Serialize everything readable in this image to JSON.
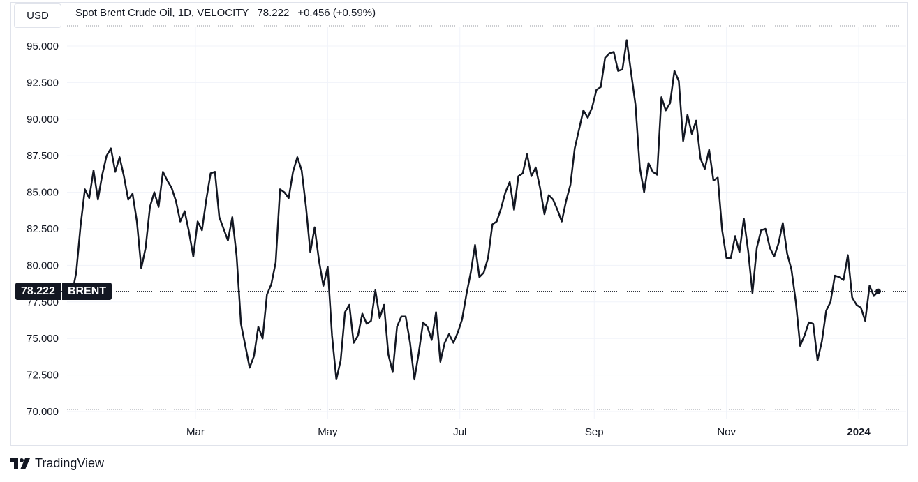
{
  "currency": "USD",
  "legend": {
    "name": "Spot Brent Crude Oil, 1D, VELOCITY",
    "last": "78.222",
    "change": "+0.456 (+0.59%)"
  },
  "price_label": {
    "price": "78.222",
    "symbol": "BRENT"
  },
  "brand": {
    "name": "TradingView",
    "icon": "tradingview-logo-icon"
  },
  "colors": {
    "line": "#131722",
    "grid": "#f0f3fa",
    "text": "#131722"
  },
  "chart_data": {
    "type": "line",
    "title": "Spot Brent Crude Oil, 1D, VELOCITY",
    "y_ticks": [
      "95.000",
      "92.500",
      "90.000",
      "87.500",
      "85.000",
      "82.500",
      "80.000",
      "77.500",
      "75.000",
      "72.500",
      "70.000"
    ],
    "ylim": [
      70,
      96.2
    ],
    "x_ticks": [
      "Mar",
      "May",
      "Jul",
      "Sep",
      "Nov",
      "2024"
    ],
    "x_tick_dates": [
      "2023-03-01",
      "2023-05-01",
      "2023-07-01",
      "2023-09-01",
      "2023-11-01",
      "2024-01-01"
    ],
    "xlim": [
      "2023-01-01",
      "2024-01-12"
    ],
    "grid": true,
    "last_value": 78.222,
    "series": [
      {
        "dates": [
          "2023-01-03",
          "2023-01-05",
          "2023-01-07",
          "2023-01-09",
          "2023-01-11",
          "2023-01-13",
          "2023-01-15",
          "2023-01-17",
          "2023-01-19",
          "2023-01-21",
          "2023-01-23",
          "2023-01-25",
          "2023-01-27",
          "2023-01-29",
          "2023-01-31",
          "2023-02-02",
          "2023-02-04",
          "2023-02-06",
          "2023-02-08",
          "2023-02-10",
          "2023-02-12",
          "2023-02-14",
          "2023-02-16",
          "2023-02-18",
          "2023-02-20",
          "2023-02-22",
          "2023-02-24",
          "2023-02-26",
          "2023-02-28",
          "2023-03-02",
          "2023-03-04",
          "2023-03-06",
          "2023-03-08",
          "2023-03-10",
          "2023-03-12",
          "2023-03-14",
          "2023-03-16",
          "2023-03-18",
          "2023-03-20",
          "2023-03-22",
          "2023-03-24",
          "2023-03-26",
          "2023-03-28",
          "2023-03-30",
          "2023-04-01",
          "2023-04-03",
          "2023-04-05",
          "2023-04-07",
          "2023-04-09",
          "2023-04-11",
          "2023-04-13",
          "2023-04-15",
          "2023-04-17",
          "2023-04-19",
          "2023-04-21",
          "2023-04-23",
          "2023-04-25",
          "2023-04-27",
          "2023-04-29",
          "2023-05-01",
          "2023-05-03",
          "2023-05-05",
          "2023-05-07",
          "2023-05-09",
          "2023-05-11",
          "2023-05-13",
          "2023-05-15",
          "2023-05-17",
          "2023-05-19",
          "2023-05-21",
          "2023-05-23",
          "2023-05-25",
          "2023-05-27",
          "2023-05-29",
          "2023-05-31",
          "2023-06-02",
          "2023-06-04",
          "2023-06-06",
          "2023-06-08",
          "2023-06-10",
          "2023-06-12",
          "2023-06-14",
          "2023-06-16",
          "2023-06-18",
          "2023-06-20",
          "2023-06-22",
          "2023-06-24",
          "2023-06-26",
          "2023-06-28",
          "2023-06-30",
          "2023-07-02",
          "2023-07-04",
          "2023-07-06",
          "2023-07-08",
          "2023-07-10",
          "2023-07-12",
          "2023-07-14",
          "2023-07-16",
          "2023-07-18",
          "2023-07-20",
          "2023-07-22",
          "2023-07-24",
          "2023-07-26",
          "2023-07-28",
          "2023-07-30",
          "2023-08-01",
          "2023-08-03",
          "2023-08-05",
          "2023-08-07",
          "2023-08-09",
          "2023-08-11",
          "2023-08-13",
          "2023-08-15",
          "2023-08-17",
          "2023-08-19",
          "2023-08-21",
          "2023-08-23",
          "2023-08-25",
          "2023-08-27",
          "2023-08-29",
          "2023-08-31",
          "2023-09-02",
          "2023-09-04",
          "2023-09-06",
          "2023-09-08",
          "2023-09-10",
          "2023-09-12",
          "2023-09-14",
          "2023-09-16",
          "2023-09-18",
          "2023-09-20",
          "2023-09-22",
          "2023-09-24",
          "2023-09-26",
          "2023-09-28",
          "2023-09-30",
          "2023-10-02",
          "2023-10-04",
          "2023-10-06",
          "2023-10-08",
          "2023-10-10",
          "2023-10-12",
          "2023-10-14",
          "2023-10-16",
          "2023-10-18",
          "2023-10-20",
          "2023-10-22",
          "2023-10-24",
          "2023-10-26",
          "2023-10-28",
          "2023-10-30",
          "2023-11-01",
          "2023-11-03",
          "2023-11-05",
          "2023-11-07",
          "2023-11-09",
          "2023-11-11",
          "2023-11-13",
          "2023-11-15",
          "2023-11-17",
          "2023-11-19",
          "2023-11-21",
          "2023-11-23",
          "2023-11-25",
          "2023-11-27",
          "2023-11-29",
          "2023-12-01",
          "2023-12-03",
          "2023-12-05",
          "2023-12-07",
          "2023-12-09",
          "2023-12-11",
          "2023-12-13",
          "2023-12-15",
          "2023-12-17",
          "2023-12-19",
          "2023-12-21",
          "2023-12-23",
          "2023-12-25",
          "2023-12-27",
          "2023-12-29",
          "2023-12-31",
          "2024-01-02",
          "2024-01-04",
          "2024-01-06",
          "2024-01-08",
          "2024-01-10"
        ],
        "values": [
          78.0,
          79.5,
          82.7,
          85.2,
          84.6,
          86.5,
          84.5,
          86.2,
          87.5,
          88.0,
          86.4,
          87.4,
          86.1,
          84.5,
          84.9,
          83.0,
          79.8,
          81.2,
          84.0,
          85.0,
          84.0,
          86.4,
          85.8,
          85.3,
          84.4,
          83.0,
          83.7,
          82.3,
          80.6,
          83.0,
          82.4,
          84.5,
          86.3,
          86.4,
          83.3,
          82.5,
          81.7,
          83.3,
          80.6,
          76.0,
          74.5,
          73.0,
          73.8,
          75.8,
          75.0,
          78.0,
          78.7,
          80.2,
          85.2,
          85.0,
          84.6,
          86.4,
          87.4,
          86.5,
          84.0,
          80.9,
          82.6,
          80.3,
          78.6,
          79.9,
          75.2,
          72.2,
          73.5,
          76.8,
          77.3,
          74.7,
          75.2,
          76.7,
          76.0,
          76.2,
          78.3,
          76.4,
          77.3,
          73.9,
          72.7,
          75.8,
          76.5,
          76.5,
          74.7,
          72.2,
          74.0,
          76.1,
          75.8,
          74.9,
          76.8,
          73.4,
          74.7,
          75.3,
          74.7,
          75.4,
          76.3,
          78.0,
          79.5,
          81.4,
          79.2,
          79.5,
          80.5,
          82.8,
          83.0,
          83.9,
          85.0,
          85.7,
          83.8,
          86.1,
          86.3,
          87.6,
          86.1,
          86.7,
          85.3,
          83.5,
          84.8,
          84.5,
          83.8,
          83.0,
          84.4,
          85.5,
          88.0,
          89.3,
          90.6,
          90.1,
          90.8,
          92.0,
          92.2,
          94.2,
          94.5,
          94.6,
          93.3,
          93.4,
          95.4,
          93.2,
          91.0,
          86.7,
          85.0,
          87.0,
          86.4,
          86.2,
          91.5,
          90.6,
          91.1,
          93.3,
          92.6,
          88.5,
          90.3,
          89.0,
          89.9,
          87.3,
          86.6,
          87.9,
          85.8,
          86.0,
          82.4,
          80.5,
          80.5,
          82.0,
          80.9,
          83.2,
          81.0,
          78.1,
          81.2,
          82.4,
          82.5,
          81.2,
          80.6,
          81.5,
          82.9,
          80.8,
          79.7,
          77.5,
          74.5,
          75.2,
          76.1,
          76.0,
          73.5,
          74.8,
          76.9,
          77.5,
          79.3,
          79.2,
          79.0,
          80.7,
          77.8,
          77.3,
          77.1,
          76.2,
          78.6,
          77.9,
          78.222
        ]
      }
    ]
  }
}
